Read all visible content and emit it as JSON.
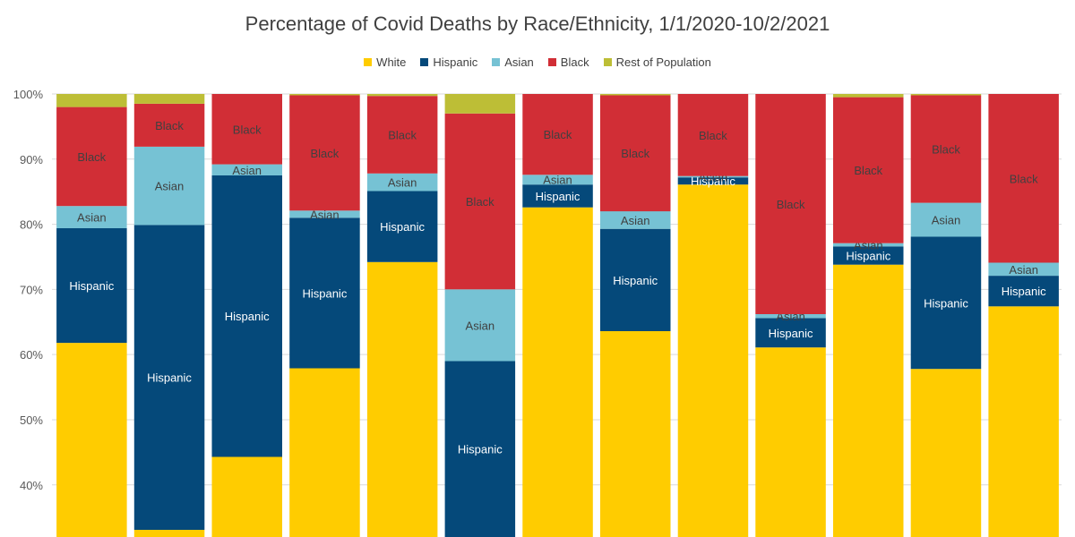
{
  "chart_data": {
    "type": "bar",
    "stacked": true,
    "title": "Percentage of Covid Deaths by Race/Ethnicity, 1/1/2020-10/2/2021",
    "ylim": [
      32,
      100
    ],
    "yticks": [
      "40%",
      "50%",
      "60%",
      "70%",
      "80%",
      "90%",
      "100%"
    ],
    "ytick_values": [
      40,
      50,
      60,
      70,
      80,
      90,
      100
    ],
    "grid": true,
    "legend_position": "top-center",
    "legend": [
      "White",
      "Hispanic",
      "Asian",
      "Black",
      "Rest of Population"
    ],
    "colors": {
      "White": "#FFCC00",
      "Hispanic": "#05497A",
      "Asian": "#76C2D4",
      "Black": "#D12E36",
      "Rest of Population": "#BDBE36"
    },
    "label_colors": {
      "Hispanic": "#ffffff",
      "Asian": "#404040",
      "Black": "#404040"
    },
    "bars": [
      {
        "White": 61.8,
        "Hispanic": 17.6,
        "Asian": 3.4,
        "Black": 15.2,
        "Rest of Population": 2.0
      },
      {
        "White": 33.1,
        "Hispanic": 46.8,
        "Asian": 12.0,
        "Black": 6.6,
        "Rest of Population": 1.5
      },
      {
        "White": 44.3,
        "Hispanic": 43.2,
        "Asian": 1.7,
        "Black": 10.8,
        "Rest of Population": 0.0
      },
      {
        "White": 57.9,
        "Hispanic": 23.1,
        "Asian": 1.1,
        "Black": 17.7,
        "Rest of Population": 0.2
      },
      {
        "White": 74.2,
        "Hispanic": 10.9,
        "Asian": 2.7,
        "Black": 11.9,
        "Rest of Population": 0.3
      },
      {
        "White": 32.0,
        "Hispanic": 27.0,
        "Asian": 11.0,
        "Black": 27.0,
        "Rest of Population": 3.0
      },
      {
        "White": 82.6,
        "Hispanic": 3.5,
        "Asian": 1.5,
        "Black": 12.4,
        "Rest of Population": 0.0
      },
      {
        "White": 63.6,
        "Hispanic": 15.7,
        "Asian": 2.7,
        "Black": 17.8,
        "Rest of Population": 0.2
      },
      {
        "White": 86.1,
        "Hispanic": 1.1,
        "Asian": 0.2,
        "Black": 12.6,
        "Rest of Population": 0.0
      },
      {
        "White": 61.1,
        "Hispanic": 4.5,
        "Asian": 0.6,
        "Black": 33.8,
        "Rest of Population": 0.0
      },
      {
        "White": 73.8,
        "Hispanic": 2.8,
        "Asian": 0.5,
        "Black": 22.4,
        "Rest of Population": 0.5
      },
      {
        "White": 57.8,
        "Hispanic": 20.3,
        "Asian": 5.2,
        "Black": 16.5,
        "Rest of Population": 0.2
      },
      {
        "White": 67.4,
        "Hispanic": 4.7,
        "Asian": 2.0,
        "Black": 25.9,
        "Rest of Population": 0.0
      }
    ],
    "segment_labels": [
      [
        "Hispanic",
        "Asian",
        "Black"
      ],
      [
        "Hispanic",
        "Asian",
        "Black"
      ],
      [
        "Hispanic",
        "Asian",
        "Black"
      ],
      [
        "Hispanic",
        "Asian",
        "Black"
      ],
      [
        "Hispanic",
        "Asian",
        "Black"
      ],
      [
        "Hispanic",
        "Asian",
        "Black"
      ],
      [
        "Hispanic",
        "Asian",
        "Black"
      ],
      [
        "Hispanic",
        "Asian",
        "Black"
      ],
      [
        "Hispanic",
        "Asian",
        "Black"
      ],
      [
        "Hispanic",
        "Asian",
        "Black"
      ],
      [
        "Hispanic",
        "Asian",
        "Black"
      ],
      [
        "Hispanic",
        "Asian",
        "Black"
      ],
      [
        "Hispanic",
        "Asian",
        "Black"
      ]
    ]
  }
}
